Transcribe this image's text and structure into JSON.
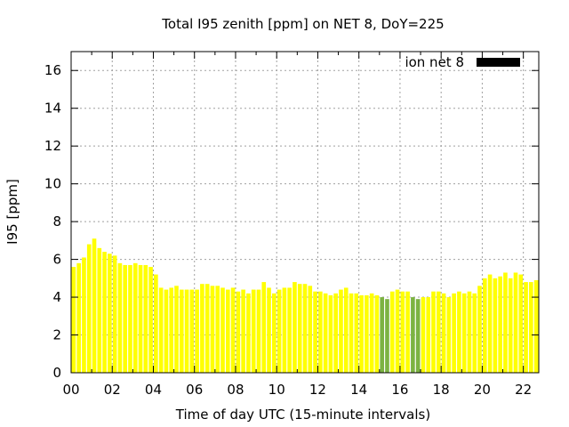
{
  "chart_data": {
    "type": "bar",
    "title": "Total I95 zenith [ppm] on NET 8, DoY=225",
    "xlabel": "Time of day UTC (15-minute intervals)",
    "ylabel": "I95 [ppm]",
    "xlim": [
      0,
      22.75
    ],
    "ylim": [
      0,
      17
    ],
    "xtick_values": [
      0,
      2,
      4,
      6,
      8,
      10,
      12,
      14,
      16,
      18,
      20,
      22
    ],
    "xtick_labels": [
      "00",
      "02",
      "04",
      "06",
      "08",
      "10",
      "12",
      "14",
      "16",
      "18",
      "20",
      "22"
    ],
    "ytick_values": [
      0,
      2,
      4,
      6,
      8,
      10,
      12,
      14,
      16
    ],
    "ytick_labels": [
      "0",
      "2",
      "4",
      "6",
      "8",
      "10",
      "12",
      "14",
      "16"
    ],
    "grid": true,
    "legend": {
      "label": "ion net 8",
      "placement": "top-right",
      "color": "#000000"
    },
    "bar_color": "#ffff00",
    "highlight_color": "#7cb342",
    "series": [
      {
        "name": "ion net 8",
        "x": [
          0,
          0.25,
          0.5,
          0.75,
          1,
          1.25,
          1.5,
          1.75,
          2,
          2.25,
          2.5,
          2.75,
          3,
          3.25,
          3.5,
          3.75,
          4,
          4.25,
          4.5,
          4.75,
          5,
          5.25,
          5.5,
          5.75,
          6,
          6.25,
          6.5,
          6.75,
          7,
          7.25,
          7.5,
          7.75,
          8,
          8.25,
          8.5,
          8.75,
          9,
          9.25,
          9.5,
          9.75,
          10,
          10.25,
          10.5,
          10.75,
          11,
          11.25,
          11.5,
          11.75,
          12,
          12.25,
          12.5,
          12.75,
          13,
          13.25,
          13.5,
          13.75,
          14,
          14.25,
          14.5,
          14.75,
          15,
          15.25,
          15.5,
          15.75,
          16,
          16.25,
          16.5,
          16.75,
          17,
          17.25,
          17.5,
          17.75,
          18,
          18.25,
          18.5,
          18.75,
          19,
          19.25,
          19.5,
          19.75,
          20,
          20.25,
          20.5,
          20.75,
          21,
          21.25,
          21.5,
          21.75,
          22,
          22.25,
          22.5
        ],
        "values": [
          5.6,
          5.8,
          6.1,
          6.8,
          7.1,
          6.6,
          6.4,
          6.3,
          6.2,
          5.8,
          5.7,
          5.7,
          5.8,
          5.7,
          5.7,
          5.6,
          5.2,
          4.5,
          4.4,
          4.5,
          4.6,
          4.4,
          4.4,
          4.4,
          4.4,
          4.7,
          4.7,
          4.6,
          4.6,
          4.5,
          4.4,
          4.5,
          4.3,
          4.4,
          4.2,
          4.4,
          4.4,
          4.8,
          4.5,
          4.2,
          4.4,
          4.5,
          4.5,
          4.8,
          4.7,
          4.7,
          4.6,
          4.3,
          4.3,
          4.2,
          4.1,
          4.2,
          4.4,
          4.5,
          4.2,
          4.2,
          4.1,
          4.1,
          4.2,
          4.1,
          4.0,
          3.9,
          4.3,
          4.4,
          4.3,
          4.3,
          4.0,
          3.9,
          4.0,
          4.0,
          4.3,
          4.3,
          4.2,
          4.0,
          4.2,
          4.3,
          4.2,
          4.3,
          4.2,
          4.6,
          5.0,
          5.2,
          5.0,
          5.1,
          5.3,
          5.0,
          5.3,
          5.2,
          4.8,
          4.8,
          4.9
        ],
        "highlighted_x": [
          15,
          15.25,
          16.5,
          16.75
        ]
      }
    ]
  }
}
